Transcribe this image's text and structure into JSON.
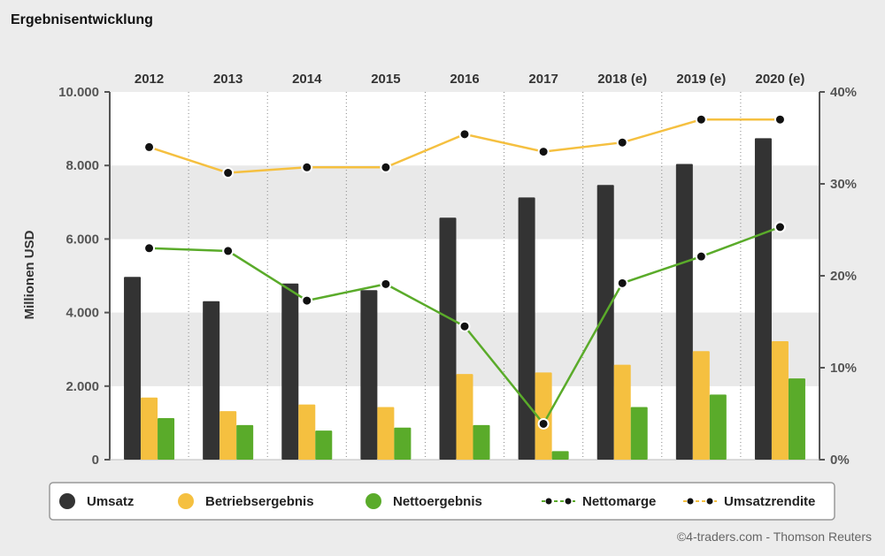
{
  "title": "Ergebnisentwicklung",
  "credit": "©4-traders.com - Thomson Reuters",
  "chart_data": {
    "type": "bar",
    "title": "Ergebnisentwicklung",
    "categories": [
      "2012",
      "2013",
      "2014",
      "2015",
      "2016",
      "2017",
      "2018 (e)",
      "2019 (e)",
      "2020 (e)"
    ],
    "ylabel": "Millionen USD",
    "ylim": [
      0,
      10000
    ],
    "y_ticks": [
      0,
      2000,
      4000,
      6000,
      8000,
      10000
    ],
    "y_tick_labels": [
      "0",
      "2.000",
      "4.000",
      "6.000",
      "8.000",
      "10.000"
    ],
    "y2lim": [
      0,
      40
    ],
    "y2_ticks": [
      0,
      10,
      20,
      30,
      40
    ],
    "y2_tick_labels": [
      "0%",
      "10%",
      "20%",
      "30%",
      "40%"
    ],
    "series": [
      {
        "name": "Umsatz",
        "kind": "bar",
        "axis": "left",
        "color": "#333333",
        "values": [
          4970,
          4310,
          4790,
          4610,
          6580,
          7130,
          7470,
          8040,
          8740
        ]
      },
      {
        "name": "Betriebsergebnis",
        "kind": "bar",
        "axis": "left",
        "color": "#f5c040",
        "values": [
          1690,
          1320,
          1500,
          1430,
          2330,
          2370,
          2580,
          2950,
          3220
        ]
      },
      {
        "name": "Nettoergebnis",
        "kind": "bar",
        "axis": "left",
        "color": "#5aab2a",
        "values": [
          1130,
          940,
          790,
          870,
          940,
          230,
          1430,
          1770,
          2210
        ]
      },
      {
        "name": "Nettomarge",
        "kind": "line",
        "axis": "right",
        "color": "#5aab2a",
        "values": [
          23.0,
          22.7,
          17.3,
          19.1,
          14.5,
          3.9,
          19.2,
          22.1,
          25.3
        ]
      },
      {
        "name": "Umsatzrendite",
        "kind": "line",
        "axis": "right",
        "color": "#f5c040",
        "values": [
          34.0,
          31.2,
          31.8,
          31.8,
          35.4,
          33.5,
          34.5,
          37.0,
          37.0
        ]
      }
    ],
    "legend": [
      "Umsatz",
      "Betriebsergebnis",
      "Nettoergebnis",
      "Nettomarge",
      "Umsatzrendite"
    ],
    "legend_position": "bottom"
  }
}
